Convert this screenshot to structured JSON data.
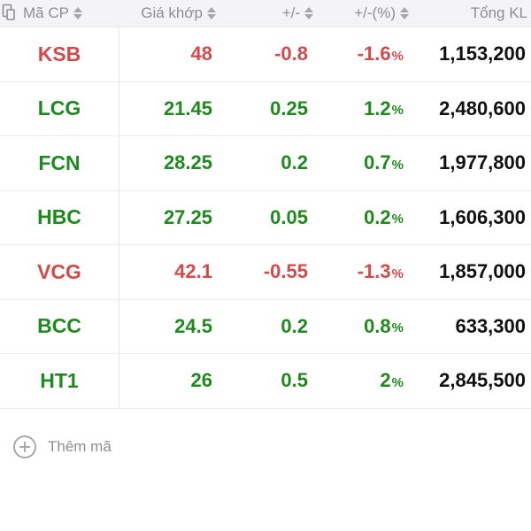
{
  "header": {
    "symbol": "Mã CP",
    "price": "Giá khớp",
    "change": "+/-",
    "percent": "+/-(%)",
    "volume": "Tổng KL"
  },
  "colors": {
    "up": "#1e8a1e",
    "down": "#d24a4a",
    "header_bg": "#f4f4f6",
    "muted": "#8d8d93"
  },
  "rows": [
    {
      "symbol": "KSB",
      "price": "48",
      "change": "-0.8",
      "percent": "-1.6",
      "unit": "%",
      "volume": "1,153,200",
      "trend": "down"
    },
    {
      "symbol": "LCG",
      "price": "21.45",
      "change": "0.25",
      "percent": "1.2",
      "unit": "%",
      "volume": "2,480,600",
      "trend": "up"
    },
    {
      "symbol": "FCN",
      "price": "28.25",
      "change": "0.2",
      "percent": "0.7",
      "unit": "%",
      "volume": "1,977,800",
      "trend": "up"
    },
    {
      "symbol": "HBC",
      "price": "27.25",
      "change": "0.05",
      "percent": "0.2",
      "unit": "%",
      "volume": "1,606,300",
      "trend": "up"
    },
    {
      "symbol": "VCG",
      "price": "42.1",
      "change": "-0.55",
      "percent": "-1.3",
      "unit": "%",
      "volume": "1,857,000",
      "trend": "down"
    },
    {
      "symbol": "BCC",
      "price": "24.5",
      "change": "0.2",
      "percent": "0.8",
      "unit": "%",
      "volume": "633,300",
      "trend": "up"
    },
    {
      "symbol": "HT1",
      "price": "26",
      "change": "0.5",
      "percent": "2",
      "unit": "%",
      "volume": "2,845,500",
      "trend": "up"
    }
  ],
  "add": {
    "label": "Thêm mã",
    "icon": "plus-circle-icon"
  }
}
